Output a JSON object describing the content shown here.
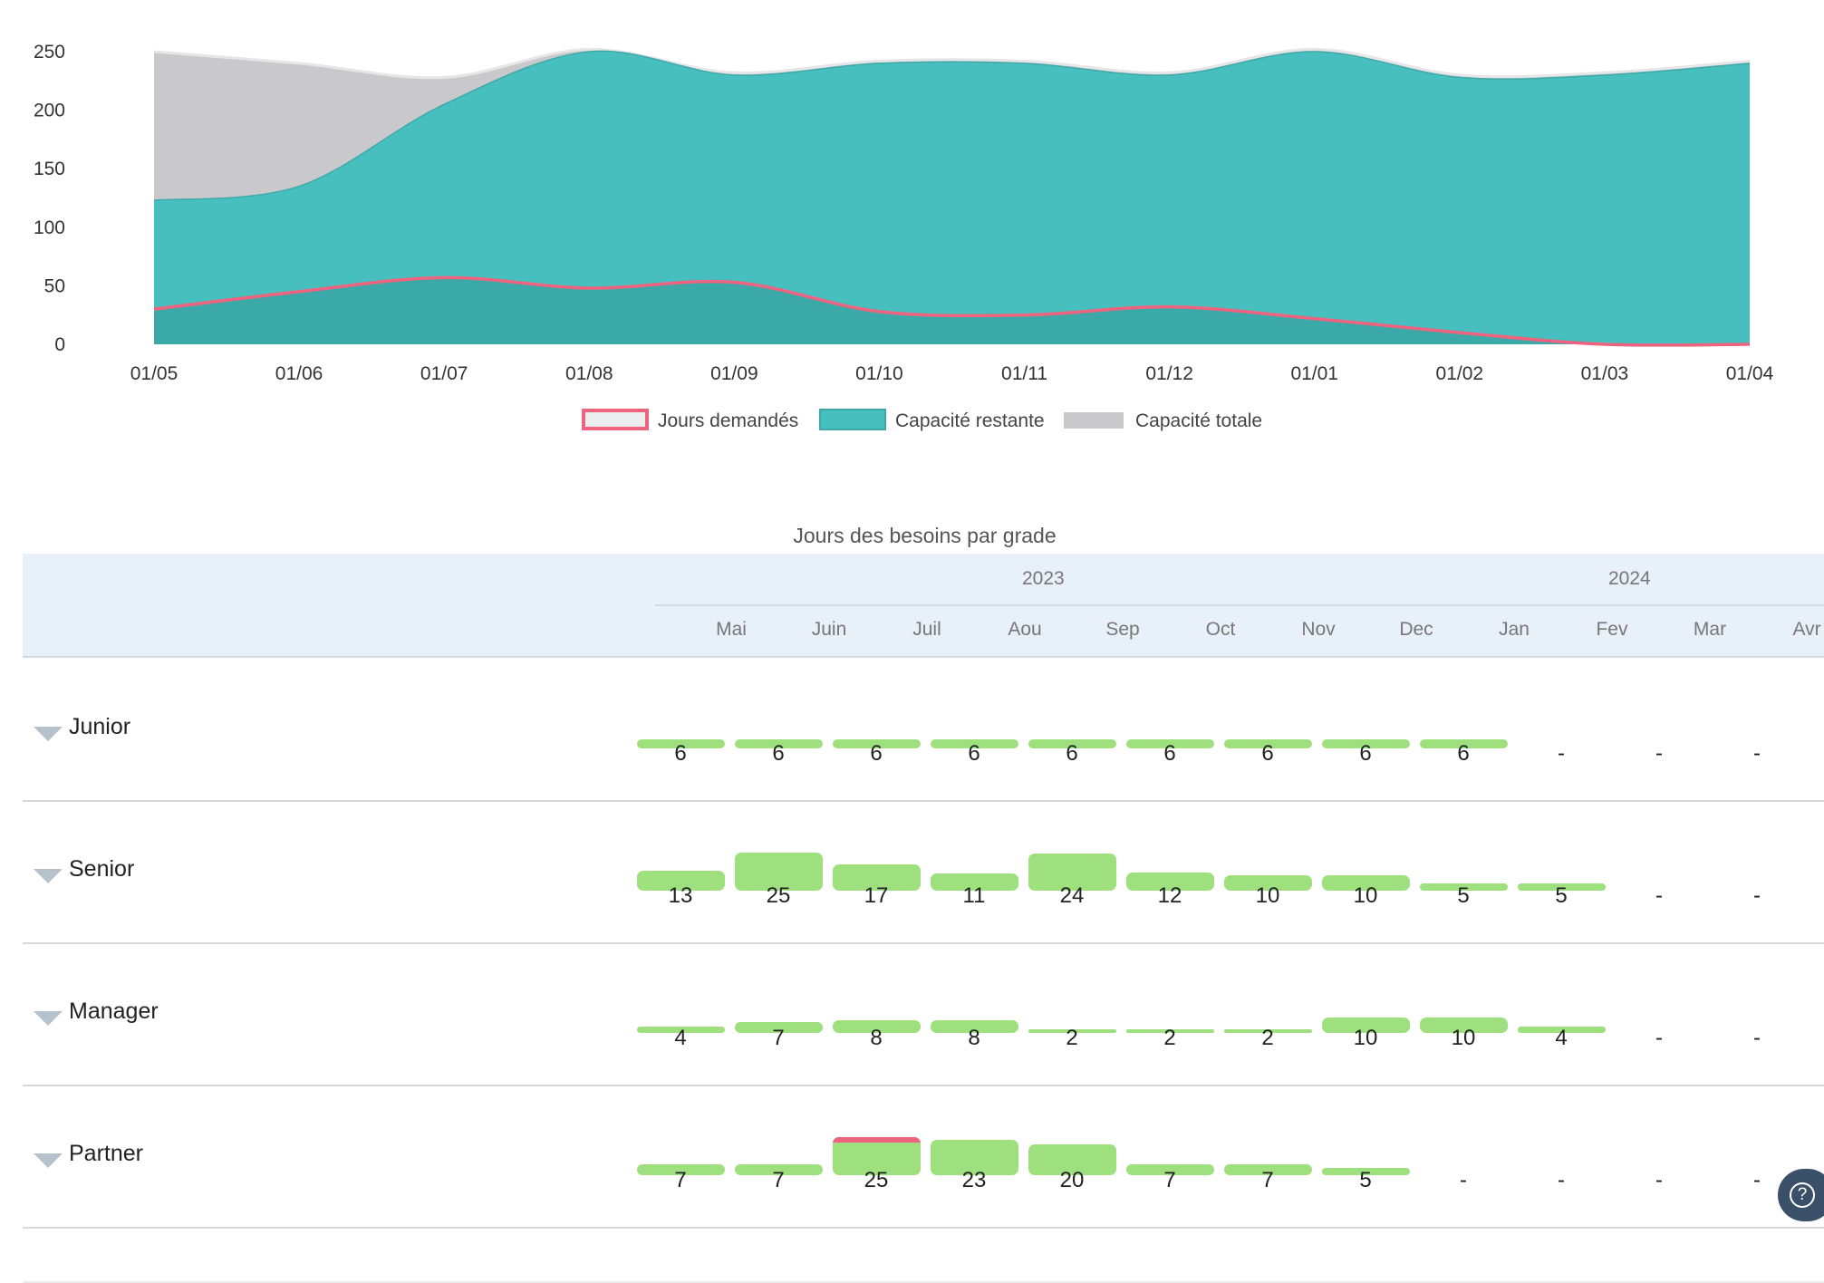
{
  "chart_data": {
    "type": "area",
    "x": [
      "01/05",
      "01/06",
      "01/07",
      "01/08",
      "01/09",
      "01/10",
      "01/11",
      "01/12",
      "01/01",
      "01/02",
      "01/03",
      "01/04"
    ],
    "ylim": [
      0,
      250
    ],
    "yticks": [
      0,
      50,
      100,
      150,
      200,
      250
    ],
    "grid": false,
    "legend_position": "bottom",
    "series": [
      {
        "name": "Jours demandés",
        "color": "#f0637f",
        "fill": "#ecedef",
        "values": [
          30,
          45,
          57,
          48,
          53,
          28,
          25,
          32,
          22,
          10,
          0,
          0
        ]
      },
      {
        "name": "Capacité restante",
        "color": "#48bfbf",
        "fill": "#48bfbf",
        "values": [
          123,
          135,
          205,
          250,
          230,
          240,
          240,
          230,
          250,
          228,
          230,
          240
        ]
      },
      {
        "name": "Capacité totale",
        "color": "#c9c9cc",
        "fill": "#c9c9cc",
        "values": [
          250,
          240,
          228,
          252,
          232,
          242,
          242,
          232,
          252,
          230,
          232,
          242
        ]
      }
    ]
  },
  "grid": {
    "title": "Jours des besoins par grade",
    "years": [
      "2023",
      "2024"
    ],
    "months": [
      "Mai",
      "Juin",
      "Juil",
      "Aou",
      "Sep",
      "Oct",
      "Nov",
      "Dec",
      "Jan",
      "Fev",
      "Mar",
      "Avr"
    ],
    "bar_color": "#9edf7e",
    "overflow_color": "#f0637f",
    "rows": [
      {
        "label": "Junior",
        "values": [
          "6",
          "6",
          "6",
          "6",
          "6",
          "6",
          "6",
          "6",
          "6",
          "-",
          "-",
          "-"
        ],
        "levels": [
          6,
          6,
          6,
          6,
          6,
          6,
          6,
          6,
          6,
          null,
          null,
          null
        ],
        "overflow": [
          false,
          false,
          false,
          false,
          false,
          false,
          false,
          false,
          false,
          false,
          false,
          false
        ]
      },
      {
        "label": "Senior",
        "values": [
          "13",
          "25",
          "17",
          "11",
          "24",
          "12",
          "10",
          "10",
          "5",
          "5",
          "-",
          "-"
        ],
        "levels": [
          13,
          25,
          17,
          11,
          24,
          12,
          10,
          10,
          5,
          5,
          null,
          null
        ],
        "overflow": [
          false,
          false,
          false,
          false,
          false,
          false,
          false,
          false,
          false,
          false,
          false,
          false
        ]
      },
      {
        "label": "Manager",
        "values": [
          "4",
          "7",
          "8",
          "8",
          "2",
          "2",
          "2",
          "10",
          "10",
          "4",
          "-",
          "-"
        ],
        "levels": [
          4,
          7,
          8,
          8,
          2,
          2,
          2,
          10,
          10,
          4,
          null,
          null
        ],
        "overflow": [
          false,
          false,
          false,
          false,
          false,
          false,
          false,
          false,
          false,
          false,
          false,
          false
        ]
      },
      {
        "label": "Partner",
        "values": [
          "7",
          "7",
          "25",
          "23",
          "20",
          "7",
          "7",
          "5",
          "-",
          "-",
          "-",
          "-"
        ],
        "levels": [
          7,
          7,
          25,
          23,
          20,
          7,
          7,
          5,
          null,
          null,
          null,
          null
        ],
        "overflow": [
          false,
          false,
          true,
          false,
          false,
          false,
          false,
          false,
          false,
          false,
          false,
          false
        ]
      }
    ]
  },
  "help": {
    "icon": "help-icon",
    "glyph": "?"
  }
}
